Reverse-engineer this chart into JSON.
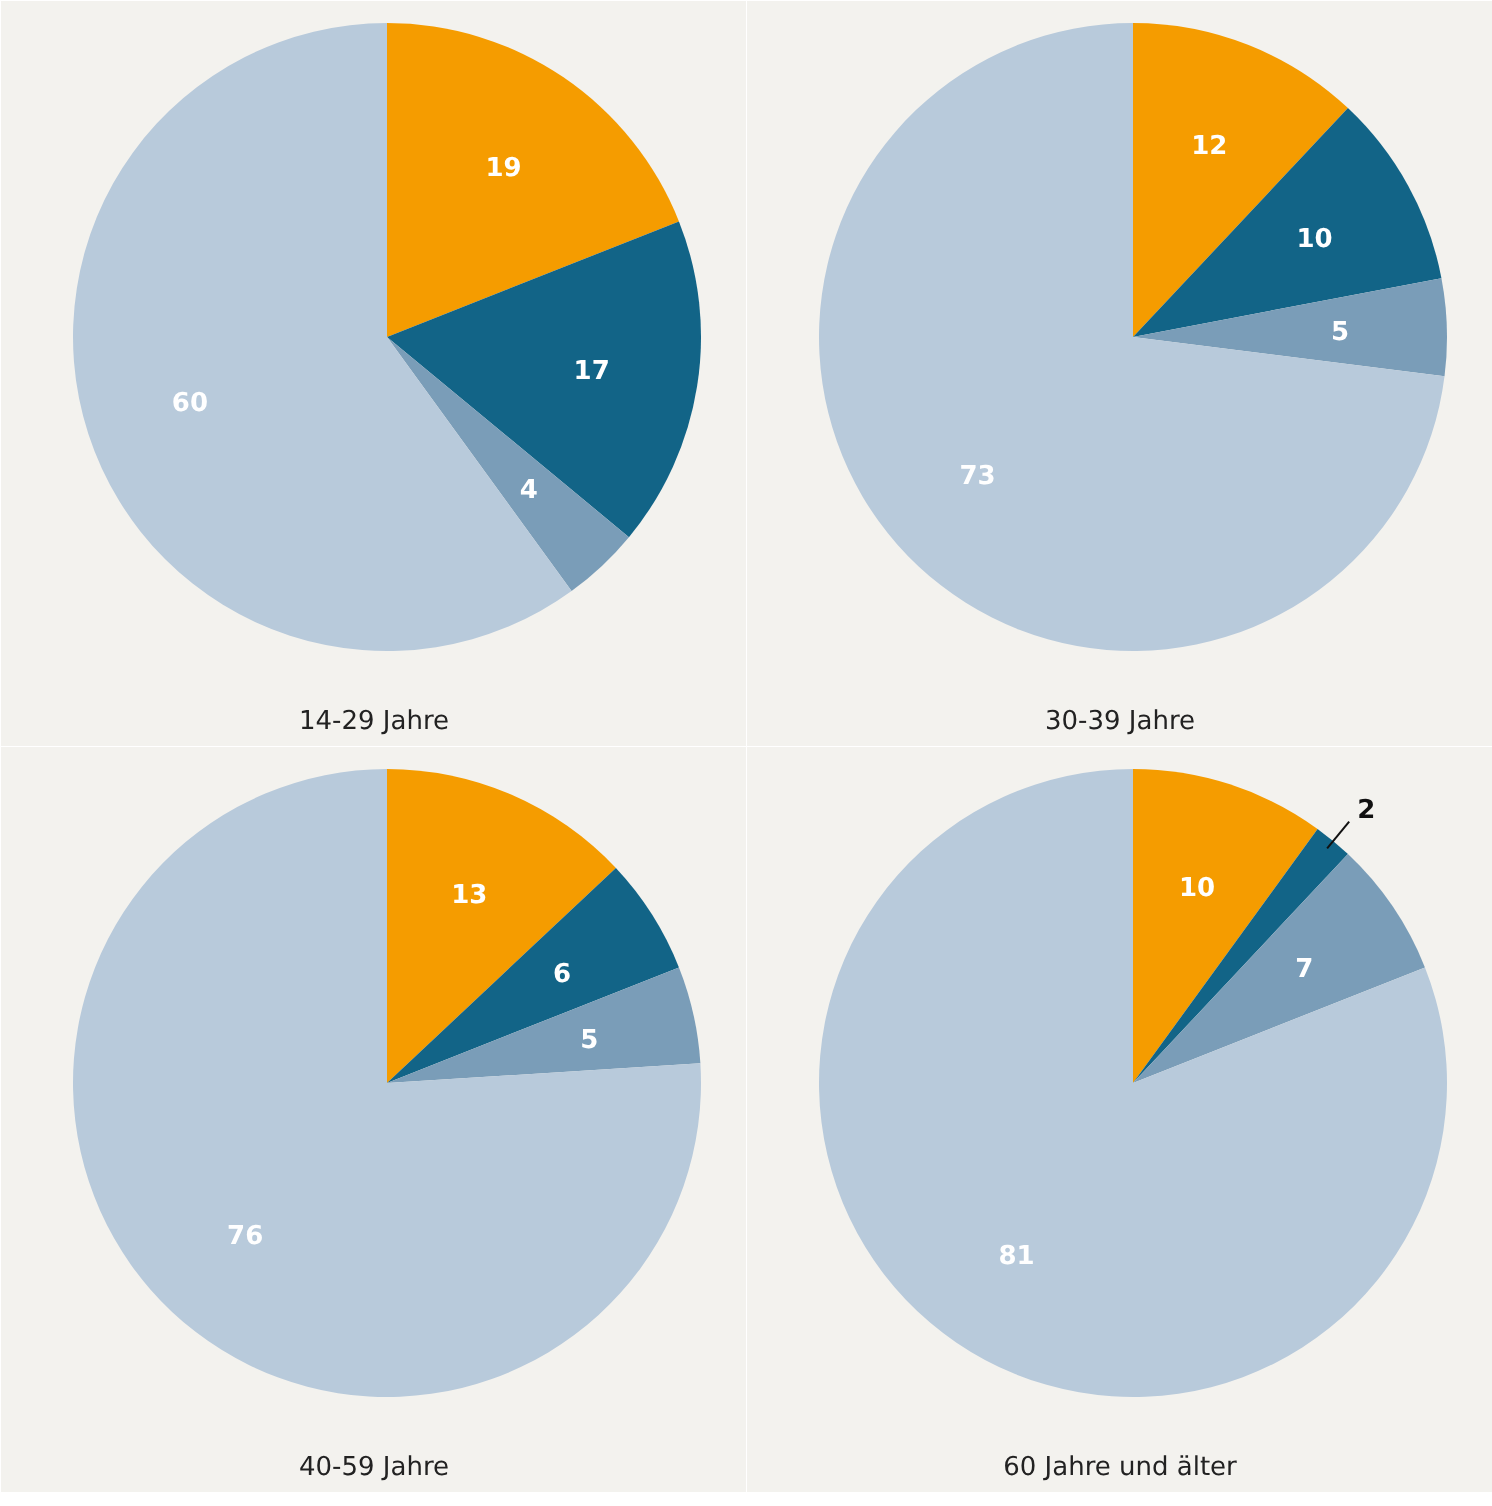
{
  "chart_data": [
    {
      "type": "pie",
      "title": "14-29 Jahre",
      "categories": [
        null,
        null,
        null,
        null
      ],
      "values": [
        19,
        17,
        4,
        60
      ],
      "colors": [
        "#f59c00",
        "#126487",
        "#7a9db8",
        "#b8cadb"
      ],
      "data_labels": true
    },
    {
      "type": "pie",
      "title": "30-39 Jahre",
      "categories": [
        null,
        null,
        null,
        null
      ],
      "values": [
        12,
        10,
        5,
        73
      ],
      "colors": [
        "#f59c00",
        "#126487",
        "#7a9db8",
        "#b8cadb"
      ],
      "data_labels": true
    },
    {
      "type": "pie",
      "title": "40-59 Jahre",
      "categories": [
        null,
        null,
        null,
        null
      ],
      "values": [
        13,
        6,
        5,
        76
      ],
      "colors": [
        "#f59c00",
        "#126487",
        "#7a9db8",
        "#b8cadb"
      ],
      "data_labels": true
    },
    {
      "type": "pie",
      "title": "60 Jahre und älter",
      "categories": [
        null,
        null,
        null,
        null
      ],
      "values": [
        10,
        2,
        7,
        81
      ],
      "colors": [
        "#f59c00",
        "#126487",
        "#7a9db8",
        "#b8cadb"
      ],
      "data_labels": true
    }
  ]
}
